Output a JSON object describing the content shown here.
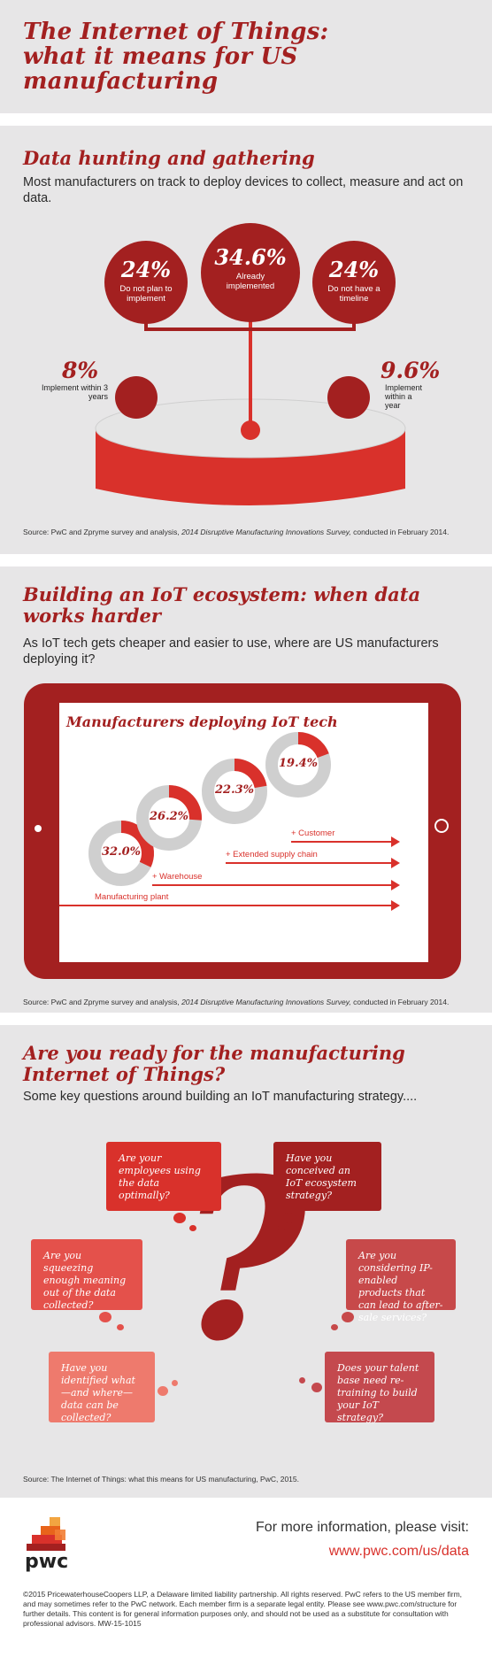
{
  "header": {
    "title": "The  Internet of Things: what it  means for US manufacturing"
  },
  "section1": {
    "heading": "Data hunting and gathering",
    "lead": "Most manufacturers on track to deploy devices to collect, measure and act on data.",
    "top": {
      "value": "34.6%",
      "label": "Already implemented"
    },
    "left": {
      "value": "24%",
      "label": "Do not plan to implement"
    },
    "right": {
      "value": "24%",
      "label": "Do not have a timeline"
    },
    "side_left": {
      "value": "8%",
      "label": "Implement within 3 years"
    },
    "side_right": {
      "value": "9.6%",
      "label": "Implement within a year"
    },
    "source_pre": "Source: PwC and Zpryme survey and analysis, ",
    "source_em": "2014 Disruptive Manufacturing Innovations Survey,",
    "source_post": " conducted in February 2014."
  },
  "section2": {
    "heading": "Building an IoT ecosystem: when data works harder",
    "lead": "As IoT tech gets cheaper and easier to use, where are US manufacturers deploying it?",
    "chart_title": "Manufacturers deploying IoT tech",
    "source_pre": "Source: PwC and Zpryme survey and analysis, ",
    "source_em": "2014 Disruptive Manufacturing Innovations Survey,",
    "source_post": " conducted in February 2014."
  },
  "chart_data": {
    "type": "donut",
    "categories": [
      "Manufacturing plant",
      "+ Warehouse",
      "+ Extended supply chain",
      "+ Customer"
    ],
    "values": [
      32.0,
      26.2,
      22.3,
      19.4
    ],
    "value_labels": [
      "32.0%",
      "26.2%",
      "22.3%",
      "19.4%"
    ],
    "title": "Manufacturers deploying IoT tech"
  },
  "section3": {
    "heading": "Are you ready for the manufacturing Internet of Things?",
    "lead": "Some key questions around building  an IoT manufacturing strategy....",
    "questions": [
      "Are your employees using the data optimally?",
      "Have you conceived an IoT ecosystem strategy?",
      "Are you squeezing enough meaning out of the data collected?",
      "Are you considering IP-enabled products that can lead to after-sale services?",
      "Have you identified what—and where— data can be collected?",
      "Does your talent base need re-training to build your IoT strategy?"
    ],
    "big_mark": "?",
    "source": "Source: The Internet of Things: what this means for US manufacturing, PwC, 2015."
  },
  "footer": {
    "logo_text": "pwc",
    "more_info": "For more information, please visit:",
    "url": "www.pwc.com/us/data",
    "legal": "©2015 PricewaterhouseCoopers LLP, a Delaware limited liability partnership. All rights reserved. PwC refers to the US member firm, and may sometimes refer to the PwC network. Each member firm is a separate legal entity. Please see www.pwc.com/structure for further details. This content is for general information purposes only, and should not be used as a substitute for consultation with professional advisors. MW-15-1015"
  },
  "colors": {
    "brand_red": "#a32020",
    "accent_red": "#d9312b",
    "donut_grey": "#cfcfcf"
  }
}
